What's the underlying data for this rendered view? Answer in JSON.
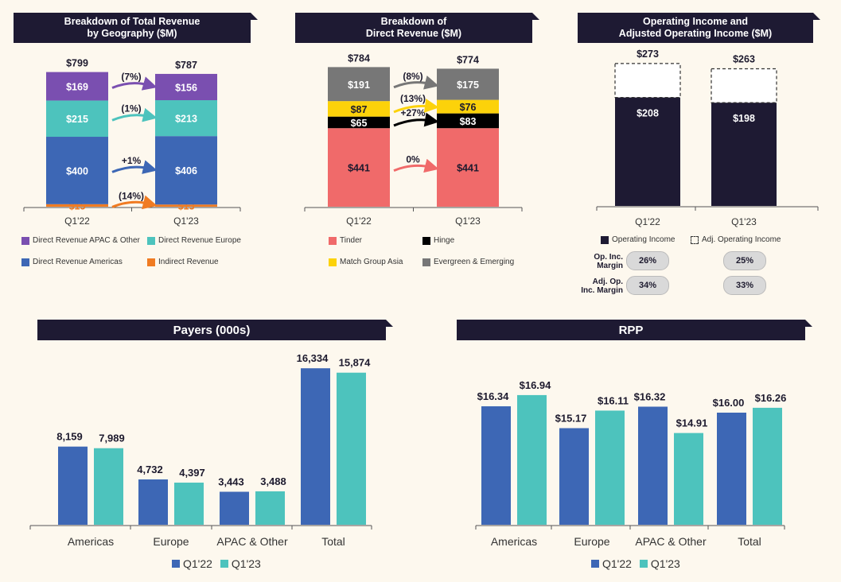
{
  "colors": {
    "header_bg": "#1e1a33",
    "purple": "#7a4fb0",
    "teal": "#4dc3bd",
    "blue": "#3d67b5",
    "orange": "#f07b22",
    "tinder": "#f06a6a",
    "hinge": "#000000",
    "yellow": "#fcd20a",
    "gray": "#777777",
    "navy": "#1e1a33"
  },
  "geo": {
    "header": "Breakdown of Total Revenue\nby Geography ($M)",
    "legend": [
      "Direct Revenue APAC & Other",
      "Direct Revenue Europe",
      "Direct Revenue Americas",
      "Indirect Revenue"
    ]
  },
  "direct": {
    "header": "Breakdown of\nDirect Revenue ($M)",
    "legend": [
      "Tinder",
      "Hinge",
      "Match Group Asia",
      "Evergreen & Emerging"
    ]
  },
  "opinc": {
    "header": "Operating Income and\nAdjusted Operating Income ($M)",
    "legend": [
      "Operating Income",
      "Adj. Operating Income"
    ],
    "margin_label_1": "Op. Inc.\nMargin",
    "margin_label_2": "Adj. Op.\nInc. Margin",
    "op_margin": [
      "26%",
      "25%"
    ],
    "adj_margin": [
      "34%",
      "33%"
    ]
  },
  "payers": {
    "header": "Payers (000s)",
    "legend": [
      "Q1'22",
      "Q1'23"
    ]
  },
  "rpp": {
    "header": "RPP",
    "legend": [
      "Q1'22",
      "Q1'23"
    ]
  },
  "chart_data": [
    {
      "type": "bar",
      "stacked": true,
      "title": "Breakdown of Total Revenue by Geography ($M)",
      "categories": [
        "Q1'22",
        "Q1'23"
      ],
      "series": [
        {
          "name": "Indirect Revenue",
          "values": [
            15,
            13
          ],
          "labels": [
            "$15",
            "$13"
          ]
        },
        {
          "name": "Direct Revenue Americas",
          "values": [
            400,
            406
          ],
          "labels": [
            "$400",
            "$406"
          ]
        },
        {
          "name": "Direct Revenue Europe",
          "values": [
            215,
            213
          ],
          "labels": [
            "$215",
            "$213"
          ]
        },
        {
          "name": "Direct Revenue APAC & Other",
          "values": [
            169,
            156
          ],
          "labels": [
            "$169",
            "$156"
          ]
        }
      ],
      "totals": [
        "$799",
        "$787"
      ],
      "changes": [
        "(14%)",
        "+1%",
        "(1%)",
        "(7%)"
      ]
    },
    {
      "type": "bar",
      "stacked": true,
      "title": "Breakdown of Direct Revenue ($M)",
      "categories": [
        "Q1'22",
        "Q1'23"
      ],
      "series": [
        {
          "name": "Tinder",
          "values": [
            441,
            441
          ],
          "labels": [
            "$441",
            "$441"
          ]
        },
        {
          "name": "Hinge",
          "values": [
            65,
            83
          ],
          "labels": [
            "$65",
            "$83"
          ]
        },
        {
          "name": "Match Group Asia",
          "values": [
            87,
            76
          ],
          "labels": [
            "$87",
            "$76"
          ]
        },
        {
          "name": "Evergreen & Emerging",
          "values": [
            191,
            175
          ],
          "labels": [
            "$191",
            "$175"
          ]
        }
      ],
      "totals": [
        "$784",
        "$774"
      ],
      "changes": [
        "0%",
        "+27%",
        "(13%)",
        "(8%)"
      ]
    },
    {
      "type": "bar",
      "title": "Operating Income and Adjusted Operating Income ($M)",
      "categories": [
        "Q1'22",
        "Q1'23"
      ],
      "series": [
        {
          "name": "Operating Income",
          "values": [
            208,
            198
          ],
          "labels": [
            "$208",
            "$198"
          ]
        },
        {
          "name": "Adj. Operating Income",
          "values": [
            273,
            263
          ],
          "labels": [
            "$273",
            "$263"
          ]
        }
      ]
    },
    {
      "type": "bar",
      "title": "Payers (000s)",
      "categories": [
        "Americas",
        "Europe",
        "APAC & Other",
        "Total"
      ],
      "series": [
        {
          "name": "Q1'22",
          "values": [
            8159,
            4732,
            3443,
            16334
          ],
          "labels": [
            "8,159",
            "4,732",
            "3,443",
            "16,334"
          ]
        },
        {
          "name": "Q1'23",
          "values": [
            7989,
            4397,
            3488,
            15874
          ],
          "labels": [
            "7,989",
            "4,397",
            "3,488",
            "15,874"
          ]
        }
      ]
    },
    {
      "type": "bar",
      "title": "RPP",
      "categories": [
        "Americas",
        "Europe",
        "APAC & Other",
        "Total"
      ],
      "series": [
        {
          "name": "Q1'22",
          "values": [
            16.34,
            15.17,
            16.32,
            16.0
          ],
          "labels": [
            "$16.34",
            "$15.17",
            "$16.32",
            "$16.00"
          ]
        },
        {
          "name": "Q1'23",
          "values": [
            16.94,
            16.11,
            14.91,
            16.26
          ],
          "labels": [
            "$16.94",
            "$16.11",
            "$14.91",
            "$16.26"
          ]
        }
      ]
    }
  ]
}
